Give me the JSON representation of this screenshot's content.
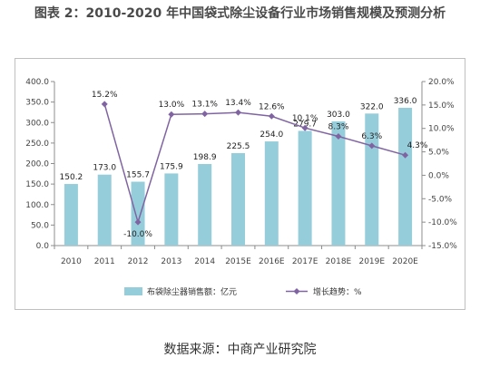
{
  "title": "图表 2：2010-2020 年中国袋式除尘设备行业市场销售规模及预测分析",
  "source": "数据来源：中商产业研究院",
  "colors": {
    "bar": "#96CDDB",
    "line": "#8064A2",
    "axis": "#8c8c8c",
    "frame": "#bfbfbf"
  },
  "chart_data": {
    "type": "bar",
    "categories": [
      "2010",
      "2011",
      "2012",
      "2013",
      "2014",
      "2015E",
      "2016E",
      "2017E",
      "2018E",
      "2019E",
      "2020E"
    ],
    "series": [
      {
        "name": "布袋除尘器销售额：亿元",
        "type": "bar",
        "axis": "left",
        "values": [
          150.2,
          173.0,
          155.7,
          175.9,
          198.9,
          225.5,
          254.0,
          279.7,
          303.0,
          322.0,
          336.0
        ],
        "labels": [
          "150.2",
          "173.0",
          "155.7",
          "175.9",
          "198.9",
          "225.5",
          "254.0",
          "279.7",
          "303.0",
          "322.0",
          "336.0"
        ]
      },
      {
        "name": "增长趋势：%",
        "type": "line",
        "axis": "right",
        "values": [
          null,
          15.2,
          -10.0,
          13.0,
          13.1,
          13.4,
          12.6,
          10.1,
          8.3,
          6.3,
          4.3
        ],
        "labels": [
          "",
          "15.2%",
          "-10.0%",
          "13.0%",
          "13.1%",
          "13.4%",
          "12.6%",
          "10.1%",
          "8.3%",
          "6.3%",
          "4.3%"
        ]
      }
    ],
    "ylim_left": [
      0,
      400
    ],
    "yticks_left": [
      "0.0",
      "50.0",
      "100.0",
      "150.0",
      "200.0",
      "250.0",
      "300.0",
      "350.0",
      "400.0"
    ],
    "ylim_right": [
      -15,
      20
    ],
    "yticks_right": [
      "-15.0%",
      "-10.0%",
      "-5.0%",
      "0.0%",
      "5.0%",
      "10.0%",
      "15.0%",
      "20.0%"
    ],
    "legend_position": "bottom",
    "grid": false
  }
}
